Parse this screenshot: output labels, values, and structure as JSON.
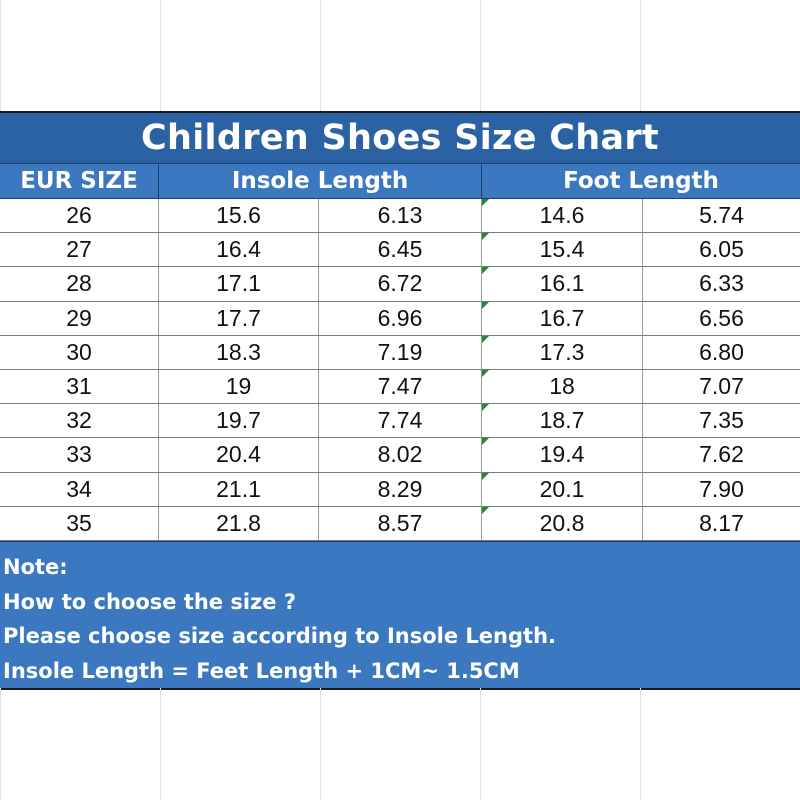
{
  "title": "Children Shoes Size Chart",
  "headers": {
    "eur": "EUR SIZE",
    "insole": "Insole Length",
    "foot": "Foot Length"
  },
  "rows": [
    {
      "eur": "26",
      "insole_cm": "15.6",
      "insole_in": "6.13",
      "foot_cm": "14.6",
      "foot_in": "5.74"
    },
    {
      "eur": "27",
      "insole_cm": "16.4",
      "insole_in": "6.45",
      "foot_cm": "15.4",
      "foot_in": "6.05"
    },
    {
      "eur": "28",
      "insole_cm": "17.1",
      "insole_in": "6.72",
      "foot_cm": "16.1",
      "foot_in": "6.33"
    },
    {
      "eur": "29",
      "insole_cm": "17.7",
      "insole_in": "6.96",
      "foot_cm": "16.7",
      "foot_in": "6.56"
    },
    {
      "eur": "30",
      "insole_cm": "18.3",
      "insole_in": "7.19",
      "foot_cm": "17.3",
      "foot_in": "6.80"
    },
    {
      "eur": "31",
      "insole_cm": "19",
      "insole_in": "7.47",
      "foot_cm": "18",
      "foot_in": "7.07"
    },
    {
      "eur": "32",
      "insole_cm": "19.7",
      "insole_in": "7.74",
      "foot_cm": "18.7",
      "foot_in": "7.35"
    },
    {
      "eur": "33",
      "insole_cm": "20.4",
      "insole_in": "8.02",
      "foot_cm": "19.4",
      "foot_in": "7.62"
    },
    {
      "eur": "34",
      "insole_cm": "21.1",
      "insole_in": "8.29",
      "foot_cm": "20.1",
      "foot_in": "7.90"
    },
    {
      "eur": "35",
      "insole_cm": "21.8",
      "insole_in": "8.57",
      "foot_cm": "20.8",
      "foot_in": "8.17"
    }
  ],
  "notes": [
    "Note:",
    "How to choose the size ?",
    "Please choose size according to Insole Length.",
    "Insole Length = Feet Length + 1CM~ 1.5CM"
  ],
  "colors": {
    "title_bg": "#2b62a3",
    "header_bg": "#3b78bf",
    "note_bg": "#3b78bf",
    "text_light": "#ffffff",
    "cell_marker": "#1f8a3a"
  }
}
